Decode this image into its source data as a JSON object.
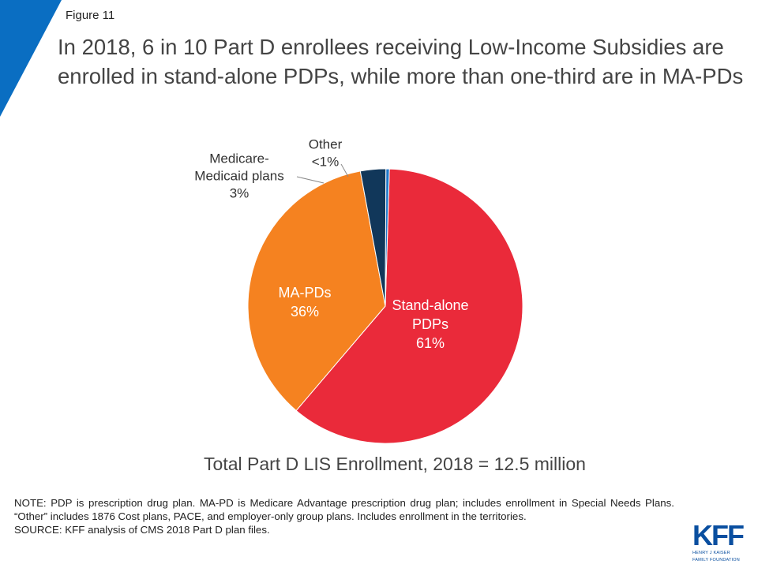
{
  "figure_label": "Figure 11",
  "title": "In 2018, 6 in 10 Part D enrollees receiving Low-Income Subsidies are enrolled in stand-alone PDPs, while more than one-third are in MA-PDs",
  "total_caption": "Total Part D LIS Enrollment, 2018 = 12.5 million",
  "note": "NOTE: PDP is prescription drug plan. MA-PD is Medicare Advantage prescription drug plan; includes enrollment in Special Needs Plans. “Other” includes 1876 Cost plans, PACE, and employer-only group plans. Includes enrollment in the territories.",
  "source": "SOURCE: KFF analysis of CMS 2018 Part D plan files.",
  "logo": {
    "mark": "KFF",
    "line1": "HENRY J KAISER",
    "line2": "FAMILY FOUNDATION"
  },
  "colors": {
    "brand_blue": "#0a6ec2",
    "stand_alone": "#ea2a3a",
    "ma_pd": "#f58220",
    "medicare_medicaid": "#11375a",
    "other": "#1f77c9"
  },
  "chart_data": {
    "type": "pie",
    "title": "",
    "slices": [
      {
        "name": "Stand-alone PDPs",
        "label_lines": [
          "Stand-alone",
          "PDPs"
        ],
        "value": 61,
        "display": "61%",
        "color": "#ea2a3a",
        "label_position": "inside"
      },
      {
        "name": "MA-PDs",
        "label_lines": [
          "MA-PDs"
        ],
        "value": 36,
        "display": "36%",
        "color": "#f58220",
        "label_position": "inside"
      },
      {
        "name": "Medicare-Medicaid plans",
        "label_lines": [
          "Medicare-",
          "Medicaid plans"
        ],
        "value": 3,
        "display": "3%",
        "color": "#11375a",
        "label_position": "outside"
      },
      {
        "name": "Other",
        "label_lines": [
          "Other"
        ],
        "value": 0.4,
        "display": "<1%",
        "color": "#1f77c9",
        "label_position": "outside"
      }
    ]
  }
}
